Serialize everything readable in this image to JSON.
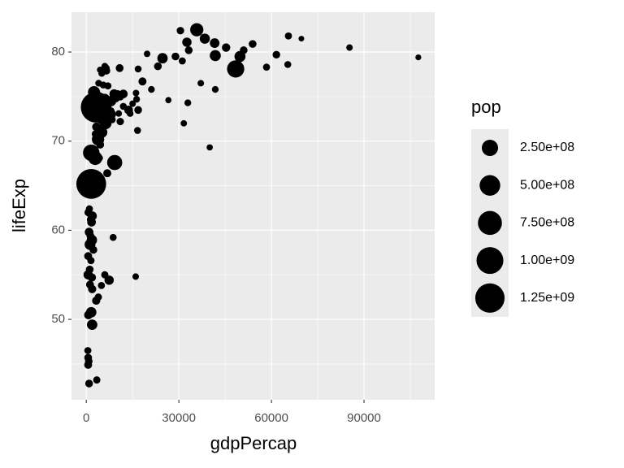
{
  "chart_data": {
    "type": "scatter",
    "x_label": "gdpPercap",
    "y_label": "lifeExp",
    "legend_title": "pop",
    "x": [
      35800,
      30500,
      65500,
      69700,
      85300,
      107600,
      48400,
      58400,
      65300,
      61600,
      53900,
      51000,
      49800,
      41600,
      41800,
      45300,
      38400,
      32600,
      33200,
      31100,
      28900,
      24700,
      23200,
      19700,
      16800,
      18200,
      21100,
      26600,
      32900,
      37100,
      41800,
      16100,
      16300,
      16800,
      15000,
      14200,
      31600,
      16600,
      40000,
      8700,
      16000,
      10800,
      6000,
      6500,
      5000,
      4500,
      7000,
      5500,
      10000,
      11000,
      9000,
      12000,
      8000,
      13700,
      11000,
      3200,
      1600,
      9200,
      1600,
      2900,
      3800,
      5000,
      6300,
      2300,
      3300,
      4500,
      6800,
      5000,
      8000,
      7500,
      2500,
      4000,
      6000,
      1000,
      700,
      1900,
      1400,
      1700,
      900,
      1300,
      1800,
      1200,
      2300,
      600,
      1500,
      1100,
      600,
      1800,
      6000,
      7400,
      4900,
      1200,
      1900,
      3900,
      3200,
      1600,
      700,
      1900,
      500,
      600,
      800,
      600,
      900,
      3400,
      2000,
      900,
      4300,
      3000,
      8400,
      10500,
      4000,
      6500,
      2700,
      12000,
      9500
    ],
    "y": [
      82.5,
      82.4,
      81.8,
      81.5,
      80.5,
      79.4,
      78.1,
      78.3,
      78.6,
      79.7,
      80.9,
      80.2,
      79.5,
      81.0,
      79.6,
      80.5,
      81.5,
      81.1,
      80.2,
      79.0,
      79.5,
      79.3,
      78.4,
      79.8,
      78.1,
      76.7,
      75.8,
      74.6,
      74.3,
      76.5,
      75.8,
      75.4,
      74.7,
      73.5,
      74.2,
      73.1,
      72.0,
      71.2,
      69.3,
      59.2,
      54.8,
      78.2,
      78.4,
      78.2,
      77.6,
      78.0,
      76.2,
      76.3,
      75.2,
      75.0,
      75.3,
      75.3,
      73.4,
      73.5,
      72.2,
      73.8,
      65.2,
      67.6,
      68.7,
      68.1,
      70.2,
      71.0,
      72.0,
      72.8,
      71.6,
      69.6,
      66.4,
      72.6,
      74.5,
      73.0,
      75.5,
      75.0,
      74.8,
      62.4,
      62.0,
      61.6,
      61.2,
      60.9,
      59.8,
      59.4,
      58.9,
      58.4,
      57.8,
      57.1,
      56.6,
      55.6,
      55.0,
      54.7,
      55.0,
      54.4,
      53.8,
      53.9,
      53.4,
      52.5,
      52.1,
      50.8,
      50.5,
      49.4,
      46.5,
      45.7,
      45.3,
      44.9,
      42.8,
      43.2,
      64.2,
      66.1,
      68.1,
      70.8,
      72.4,
      73.1,
      76.5,
      77.9,
      73.4,
      73.9,
      74.8
    ],
    "size": [
      127000000,
      8000000,
      5000000,
      400000,
      2000000,
      500000,
      300000000,
      5000000,
      4000000,
      9000000,
      10000000,
      10000000,
      65000000,
      35000000,
      65000000,
      17000000,
      45000000,
      30000000,
      10000000,
      5000000,
      10000000,
      50000000,
      10000000,
      2000000,
      4000000,
      13000000,
      3000000,
      1000000,
      3000000,
      2000000,
      3000000,
      2000000,
      3000000,
      10000000,
      2000000,
      3000000,
      1500000,
      4000000,
      1000000,
      4000000,
      2000000,
      11000000,
      3000000,
      3000000,
      3000000,
      2000000,
      5000000,
      4000000,
      32000000,
      10000000,
      30000000,
      20000000,
      4000000,
      20000000,
      7000000,
      1400000000,
      1300000000,
      200000000,
      260000000,
      150000000,
      100000000,
      70000000,
      80000000,
      10000000,
      20000000,
      10000000,
      13000000,
      90000000,
      50000000,
      110000000,
      90000000,
      30000000,
      30000000,
      5000000,
      12000000,
      30000000,
      8000000,
      20000000,
      20000000,
      10000000,
      50000000,
      60000000,
      10000000,
      12000000,
      6000000,
      10000000,
      30000000,
      15000000,
      6000000,
      30000000,
      5000000,
      12000000,
      15000000,
      6000000,
      15000000,
      50000000,
      20000000,
      50000000,
      5000000,
      10000000,
      8000000,
      12000000,
      10000000,
      6000000,
      4000000,
      5000000,
      3000000,
      9000000,
      4000000,
      2000000,
      3000000,
      10000000,
      6000000,
      4000000,
      15000000
    ],
    "color": "#000000",
    "xlim": [
      -4800,
      112900
    ],
    "ylim": [
      40.98,
      84.47
    ],
    "xticks": [
      0,
      30000,
      60000,
      90000
    ],
    "yticks": [
      50,
      60,
      70,
      80
    ],
    "grid": true,
    "size_legend": [
      {
        "value": 250000000,
        "label": "2.50e+08"
      },
      {
        "value": 500000000,
        "label": "5.00e+08"
      },
      {
        "value": 750000000,
        "label": "7.50e+08"
      },
      {
        "value": 1000000000,
        "label": "1.00e+09"
      },
      {
        "value": 1250000000,
        "label": "1.25e+09"
      }
    ],
    "legend_position": "right"
  }
}
